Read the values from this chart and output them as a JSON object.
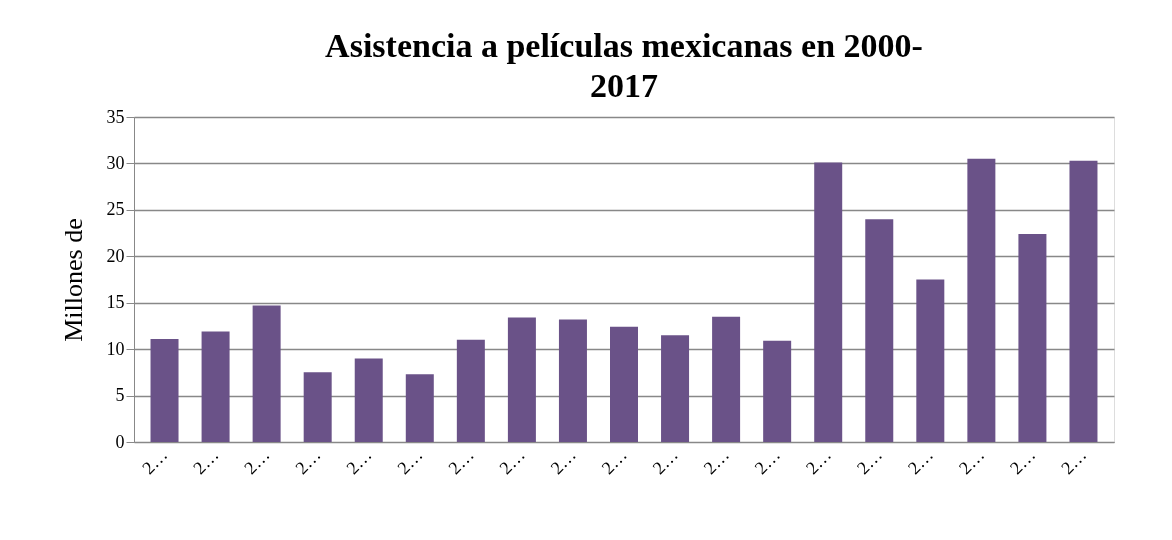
{
  "chart_data": {
    "type": "bar",
    "title": "Asistencia a películas mexicanas en 2000-\n2017",
    "ylabel": "Millones de",
    "categories": [
      "2…",
      "2…",
      "2…",
      "2…",
      "2…",
      "2…",
      "2…",
      "2…",
      "2…",
      "2…",
      "2…",
      "2…",
      "2…",
      "2…",
      "2…",
      "2…",
      "2…",
      "2…",
      "2…"
    ],
    "values": [
      11.1,
      11.9,
      14.7,
      7.5,
      9.0,
      7.3,
      11.0,
      13.4,
      13.2,
      12.4,
      11.5,
      13.5,
      10.9,
      30.1,
      24.0,
      17.5,
      30.5,
      22.4,
      30.3
    ],
    "color": "#6a5288",
    "ylim": [
      0,
      35
    ],
    "yticks": [
      0,
      5,
      10,
      15,
      20,
      25,
      30,
      35
    ],
    "grid": "y"
  }
}
